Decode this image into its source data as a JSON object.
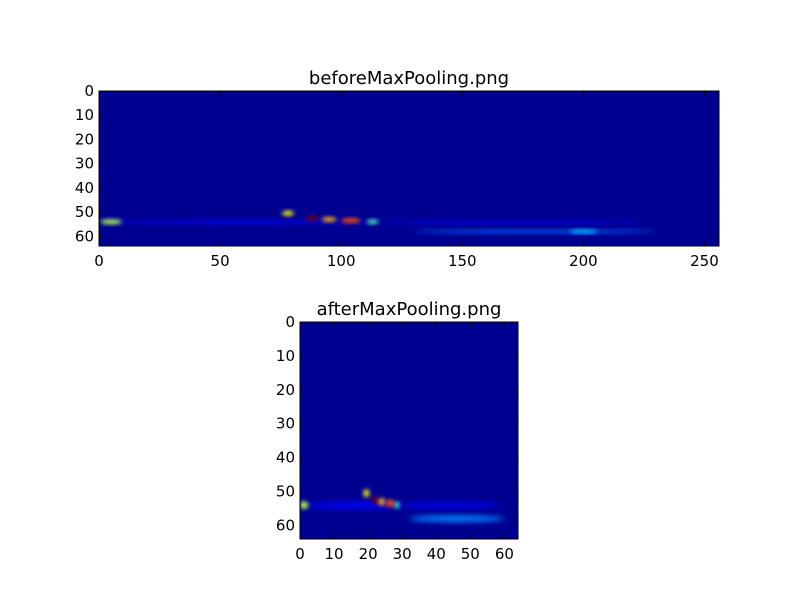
{
  "colormap": "jet",
  "background_color": "#000090",
  "chart_data": [
    {
      "type": "heatmap",
      "title": "beforeMaxPooling.png",
      "xlim": [
        0,
        256
      ],
      "ylim": [
        64,
        0
      ],
      "xticks": [
        "0",
        "50",
        "100",
        "150",
        "200",
        "250"
      ],
      "yticks": [
        "0",
        "10",
        "20",
        "30",
        "40",
        "50",
        "60"
      ],
      "grid": false,
      "features": [
        {
          "x": 60,
          "y": 54,
          "w": 110,
          "h": 1.5,
          "value": 0.12
        },
        {
          "x": 180,
          "y": 58,
          "w": 100,
          "h": 1.5,
          "value": 0.22
        },
        {
          "x": 200,
          "y": 58,
          "w": 12,
          "h": 1.5,
          "value": 0.32
        },
        {
          "x": 170,
          "y": 54,
          "w": 110,
          "h": 1.5,
          "value": 0.1
        },
        {
          "x": 5,
          "y": 54,
          "w": 9,
          "h": 2,
          "value": 0.55
        },
        {
          "x": 78,
          "y": 50.5,
          "w": 5,
          "h": 2,
          "value": 0.62
        },
        {
          "x": 88,
          "y": 52.5,
          "w": 5,
          "h": 1.8,
          "value": 1.0
        },
        {
          "x": 95,
          "y": 53,
          "w": 6,
          "h": 2,
          "value": 0.7
        },
        {
          "x": 104,
          "y": 53.5,
          "w": 8,
          "h": 2,
          "value": 0.8
        },
        {
          "x": 113,
          "y": 54,
          "w": 5,
          "h": 1.8,
          "value": 0.45
        }
      ]
    },
    {
      "type": "heatmap",
      "title": "afterMaxPooling.png",
      "xlim": [
        0,
        64
      ],
      "ylim": [
        64,
        0
      ],
      "xticks": [
        "0",
        "10",
        "20",
        "30",
        "40",
        "50",
        "60"
      ],
      "yticks": [
        "0",
        "10",
        "20",
        "30",
        "40",
        "50",
        "60"
      ],
      "grid": false,
      "features": [
        {
          "x": 16,
          "y": 54,
          "w": 28,
          "h": 2,
          "value": 0.12
        },
        {
          "x": 46,
          "y": 58,
          "w": 28,
          "h": 2,
          "value": 0.25
        },
        {
          "x": 44,
          "y": 54,
          "w": 30,
          "h": 2,
          "value": 0.1
        },
        {
          "x": 1.2,
          "y": 54,
          "w": 2.5,
          "h": 2.2,
          "value": 0.55
        },
        {
          "x": 19.5,
          "y": 50.5,
          "w": 1.8,
          "h": 2.2,
          "value": 0.62
        },
        {
          "x": 22,
          "y": 52.5,
          "w": 1.8,
          "h": 2,
          "value": 1.0
        },
        {
          "x": 24,
          "y": 53,
          "w": 2,
          "h": 2.2,
          "value": 0.7
        },
        {
          "x": 26.5,
          "y": 53.5,
          "w": 2.5,
          "h": 2.2,
          "value": 0.8
        },
        {
          "x": 28.5,
          "y": 54,
          "w": 1.5,
          "h": 2,
          "value": 0.45
        }
      ]
    }
  ]
}
